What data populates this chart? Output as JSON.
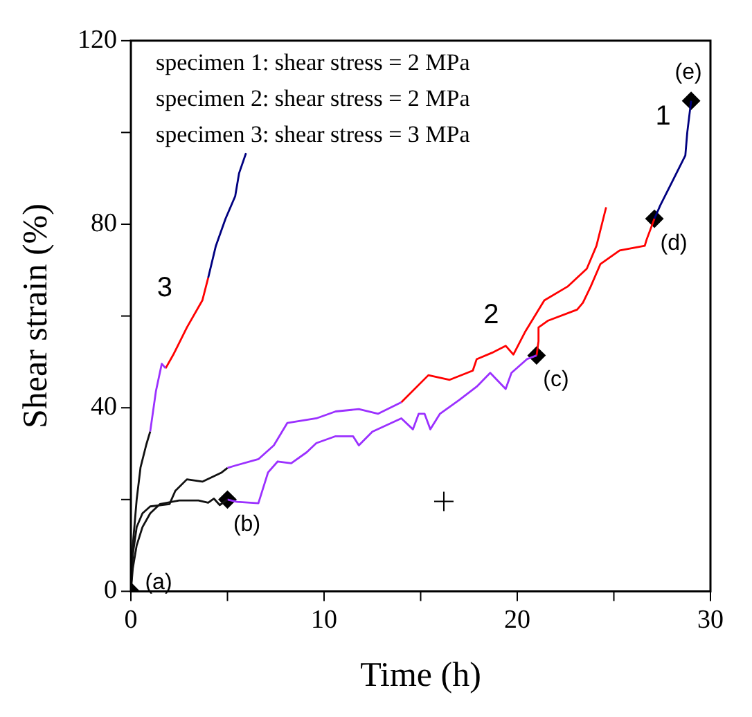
{
  "chart_data": {
    "type": "line",
    "xlabel": "Time (h)",
    "ylabel": "Shear strain (%)",
    "xlim": [
      0,
      30
    ],
    "xticks": [
      0,
      {
        "value": 5,
        "label": null
      },
      10,
      {
        "value": 15,
        "label": null
      },
      20,
      {
        "value": 25,
        "label": null
      },
      30
    ],
    "ylim": [
      0,
      120
    ],
    "yticks": [
      0,
      {
        "value": 20,
        "label": null
      },
      40,
      {
        "value": 60,
        "label": null
      },
      80,
      {
        "value": 100,
        "label": null
      },
      120
    ],
    "grid": false,
    "legend": false,
    "line_style": "solid",
    "series": [
      {
        "type": "line",
        "color": "#111111",
        "x": [
          0,
          0.1,
          0.3,
          0.6,
          1,
          1.5,
          2.5,
          3.5,
          4,
          4.3,
          4.6,
          5
        ],
        "values": [
          0,
          5,
          10,
          14,
          17,
          19,
          19.8,
          19.8,
          19.3,
          20.2,
          18.8,
          20
        ]
      },
      {
        "type": "line",
        "color": "#9b30ff",
        "x": [
          5,
          5.5,
          6.6,
          7.1,
          7.6,
          8.3,
          9.1,
          9.6,
          10.6,
          11.5,
          11.8,
          12.5,
          14,
          14.6,
          14.9,
          15.2,
          15.5,
          16,
          17,
          17.9,
          18.6,
          19.4,
          19.7,
          20.5,
          21
        ],
        "values": [
          20,
          19.5,
          19.2,
          25.9,
          28.3,
          27.9,
          30.3,
          32.3,
          33.8,
          33.8,
          31.8,
          34.8,
          37.7,
          35.3,
          38.7,
          38.7,
          35.3,
          38.7,
          41.7,
          44.6,
          47.6,
          44.1,
          47.6,
          50.6,
          51.4
        ]
      },
      {
        "color": "#ff0000",
        "x": [
          21,
          21.1,
          21.1,
          21.6,
          23.1,
          23.4,
          23.8,
          24.3,
          25.3,
          26.6,
          26.7,
          27.1
        ],
        "values": [
          51.4,
          54.5,
          57.5,
          59,
          61.4,
          62.9,
          66.4,
          71.3,
          74.3,
          75.3,
          76.7,
          81.2
        ]
      },
      {
        "name": "1",
        "color": "#000080",
        "x": [
          27.1,
          27.4,
          28,
          28.7,
          28.8,
          29
        ],
        "values": [
          81.2,
          84.1,
          89.1,
          95,
          100,
          106.9
        ]
      },
      {
        "type": "line",
        "color": "#111111",
        "x": [
          0,
          0.1,
          0.3,
          0.6,
          1,
          2,
          2.3,
          2.9,
          3.7,
          4.7,
          5
        ],
        "values": [
          0,
          8,
          14,
          17,
          18.5,
          19,
          21.9,
          24.4,
          23.9,
          25.9,
          26.9
        ]
      },
      {
        "type": "line",
        "color": "#9b30ff",
        "x": [
          5,
          5.4,
          6.6,
          7.4,
          8.1,
          9.6,
          10.6,
          11.8,
          12.8,
          14
        ],
        "values": [
          26.9,
          27.4,
          28.8,
          31.8,
          36.7,
          37.7,
          39.2,
          39.7,
          38.7,
          41.2
        ]
      },
      {
        "name": "2",
        "color": "#ff0000",
        "x": [
          14,
          15.4,
          16.5,
          17.7,
          17.9,
          18.7,
          19.4,
          19.8,
          20.4,
          21.4,
          22.6,
          23.6,
          24.1,
          24.6
        ],
        "values": [
          41.2,
          47.1,
          46.1,
          48.1,
          50.6,
          52,
          53.5,
          51.6,
          56.5,
          63.4,
          66.4,
          70.3,
          75.3,
          83.7
        ]
      },
      {
        "type": "line",
        "color": "#111111",
        "x": [
          0,
          0.1,
          0.3,
          0.5,
          0.8,
          1
        ],
        "values": [
          0,
          10,
          20,
          27,
          32,
          34.8
        ]
      },
      {
        "type": "line",
        "color": "#9b30ff",
        "x": [
          1,
          1.3,
          1.6,
          1.8
        ],
        "values": [
          34.8,
          43.7,
          49.6,
          48.6
        ]
      },
      {
        "name": "3",
        "color": "#ff0000",
        "x": [
          1.8,
          2.2,
          2.9,
          3.7,
          4
        ],
        "values": [
          48.6,
          51.6,
          57.5,
          63.4,
          68.3
        ]
      },
      {
        "type": "line",
        "color": "#000080",
        "x": [
          4,
          4.4,
          4.9,
          5.4,
          5.6,
          5.96
        ],
        "values": [
          68.3,
          75.3,
          81.2,
          86.1,
          91.1,
          95.5
        ]
      },
      {
        "type": "scatter",
        "color": "#000000",
        "marker": "diamond",
        "x": [
          0,
          5,
          21,
          27.1,
          29
        ],
        "values": [
          0,
          20,
          51.4,
          81.2,
          106.9
        ]
      },
      {
        "type": "scatter",
        "color": "#000000",
        "marker": "cross",
        "x": [
          16.2
        ],
        "values": [
          19.6
        ]
      }
    ],
    "annotations": [
      "specimen 1: shear stress = 2 MPa",
      "specimen 2: shear stress = 2 MPa",
      "specimen 3: shear stress = 3 MPa",
      {
        "text": "(a)",
        "x": 0,
        "y": 0
      },
      {
        "text": "(b)",
        "x": 5,
        "y": 20
      },
      {
        "text": "(c)",
        "x": 21,
        "y": 51.4
      },
      {
        "text": "(d)",
        "x": 27.1,
        "y": 81.2
      },
      {
        "text": "(e)",
        "x": 29,
        "y": 106.9
      }
    ]
  }
}
